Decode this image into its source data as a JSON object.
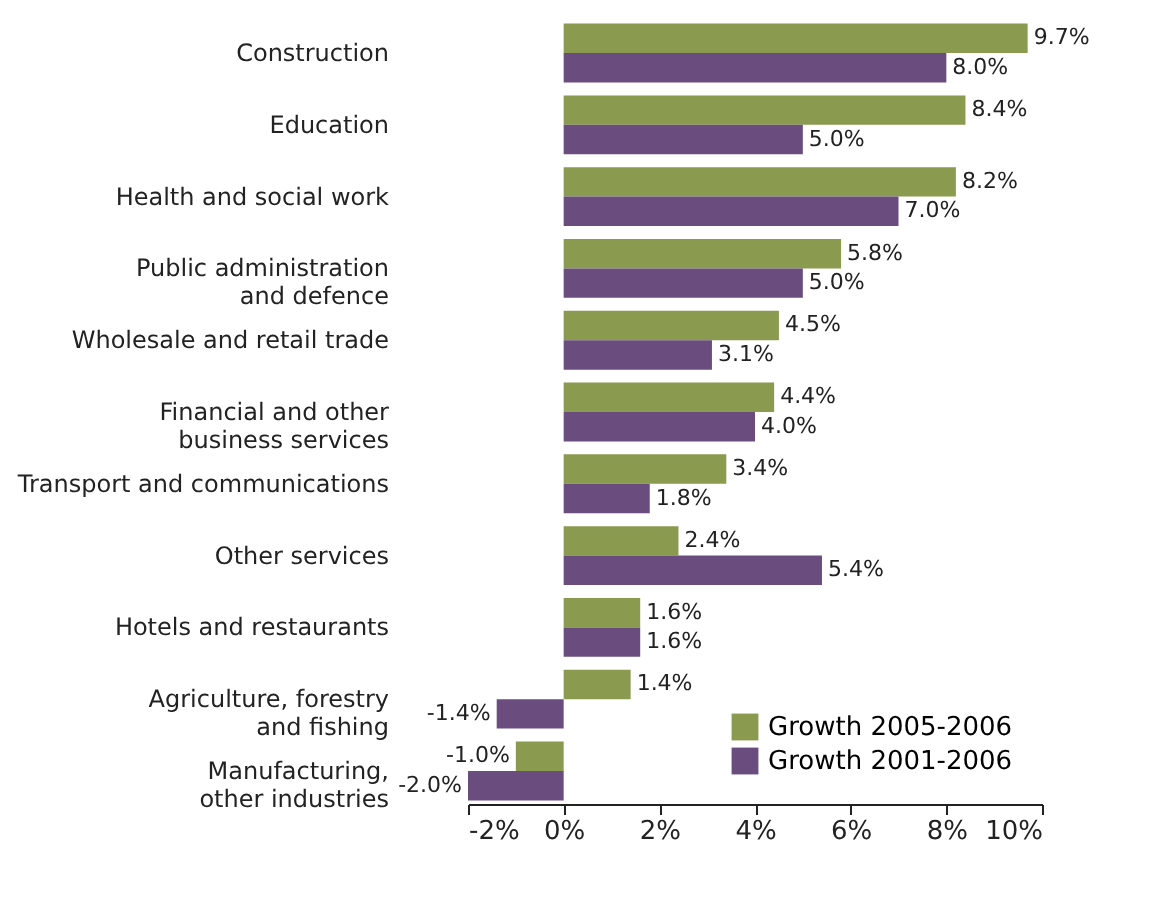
{
  "chart_data": {
    "type": "bar",
    "orientation": "horizontal",
    "categories": [
      "Construction",
      "Education",
      "Health and social work",
      "Public administration\nand defence",
      "Wholesale and retail trade",
      "Financial and other\nbusiness services",
      "Transport and communications",
      "Other services",
      "Hotels and restaurants",
      "Agriculture, forestry\nand fishing",
      "Manufacturing,\nother industries"
    ],
    "series": [
      {
        "name": "Growth 2005-2006",
        "color": "#8a9a4f",
        "values": [
          9.7,
          8.4,
          8.2,
          5.8,
          4.5,
          4.4,
          3.4,
          2.4,
          1.6,
          1.4,
          -1.0
        ],
        "value_labels": [
          "9.7%",
          "8.4%",
          "8.2%",
          "5.8%",
          "4.5%",
          "4.4%",
          "3.4%",
          "2.4%",
          "1.6%",
          "1.4%",
          "-1.0%"
        ]
      },
      {
        "name": "Growth 2001-2006",
        "color": "#6b4c7e",
        "values": [
          8.0,
          5.0,
          7.0,
          5.0,
          3.1,
          4.0,
          1.8,
          5.4,
          1.6,
          -1.4,
          -2.0
        ],
        "value_labels": [
          "8.0%",
          "5.0%",
          "7.0%",
          "5.0%",
          "3.1%",
          "4.0%",
          "1.8%",
          "5.4%",
          "1.6%",
          "-1.4%",
          "-2.0%"
        ]
      }
    ],
    "xlim": [
      -2,
      10
    ],
    "xticks": [
      {
        "value": -2,
        "label": "-2%"
      },
      {
        "value": 0,
        "label": "0%"
      },
      {
        "value": 2,
        "label": "2%"
      },
      {
        "value": 4,
        "label": "4%"
      },
      {
        "value": 6,
        "label": "6%"
      },
      {
        "value": 8,
        "label": "8%"
      },
      {
        "value": 10,
        "label": "10%"
      }
    ],
    "legend": "bottom right",
    "grid": false
  }
}
